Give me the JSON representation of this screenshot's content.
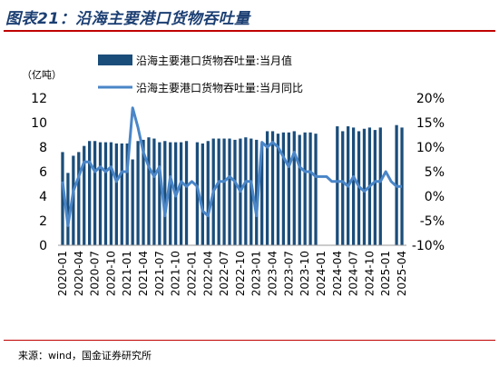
{
  "title": "图表21：沿海主要港口货物吞吐量",
  "source": "来源：wind，国金证券研究所",
  "colors": {
    "bar": "#1b4d7a",
    "line": "#4a86c8",
    "title": "#1c3f73",
    "rule": "#c00000"
  },
  "chart_data": {
    "type": "bar+line",
    "unit_label": "（亿吨）",
    "legend": [
      {
        "name": "沿海主要港口货物吞吐量:当月值",
        "type": "bar"
      },
      {
        "name": "沿海主要港口货物吞吐量:当月同比",
        "type": "line"
      }
    ],
    "y_left": {
      "range": [
        0,
        12
      ],
      "ticks": [
        "0",
        "2",
        "4",
        "6",
        "8",
        "10",
        "12"
      ]
    },
    "y_right": {
      "range": [
        -10,
        20
      ],
      "ticks": [
        "-10%",
        "-5%",
        "0%",
        "5%",
        "10%",
        "15%",
        "20%"
      ]
    },
    "x_ticks": [
      "2020-01",
      "2020-04",
      "2020-07",
      "2020-10",
      "2021-01",
      "2021-04",
      "2021-07",
      "2021-10",
      "2022-01",
      "2022-04",
      "2022-07",
      "2022-10",
      "2023-01",
      "2023-04",
      "2023-07",
      "2023-10",
      "2024-01",
      "2024-04",
      "2024-07",
      "2024-10",
      "2025-01",
      "2025-04"
    ],
    "months": [
      "2020-01",
      "2020-02",
      "2020-03",
      "2020-04",
      "2020-05",
      "2020-06",
      "2020-07",
      "2020-08",
      "2020-09",
      "2020-10",
      "2020-11",
      "2020-12",
      "2021-01",
      "2021-02",
      "2021-03",
      "2021-04",
      "2021-05",
      "2021-06",
      "2021-07",
      "2021-08",
      "2021-09",
      "2021-10",
      "2021-11",
      "2021-12",
      "2022-01",
      "2022-02",
      "2022-03",
      "2022-04",
      "2022-05",
      "2022-06",
      "2022-07",
      "2022-08",
      "2022-09",
      "2022-10",
      "2022-11",
      "2022-12",
      "2023-01",
      "2023-02",
      "2023-03",
      "2023-04",
      "2023-05",
      "2023-06",
      "2023-07",
      "2023-08",
      "2023-09",
      "2023-10",
      "2023-11",
      "2023-12",
      "2024-01",
      "2024-02",
      "2024-03",
      "2024-04",
      "2024-05",
      "2024-06",
      "2024-07",
      "2024-08",
      "2024-09",
      "2024-10",
      "2024-11",
      "2024-12",
      "2025-01",
      "2025-02",
      "2025-03",
      "2025-04"
    ],
    "values": [
      7.6,
      5.9,
      7.3,
      7.6,
      8.1,
      8.5,
      8.5,
      8.4,
      8.4,
      8.4,
      8.3,
      8.3,
      8.3,
      7.0,
      8.5,
      8.6,
      8.8,
      8.7,
      8.4,
      8.5,
      8.4,
      8.4,
      8.4,
      8.5,
      null,
      8.4,
      8.3,
      8.5,
      8.7,
      8.7,
      8.7,
      8.7,
      8.6,
      8.7,
      8.8,
      8.7,
      8.6,
      8.3,
      9.3,
      9.3,
      9.1,
      9.2,
      9.2,
      9.3,
      9.0,
      9.2,
      9.2,
      9.1,
      null,
      null,
      null,
      9.7,
      9.3,
      9.7,
      9.6,
      9.3,
      9.5,
      9.6,
      9.4,
      9.6,
      null,
      null,
      9.8,
      9.6
    ],
    "yoy": [
      3,
      -6,
      1,
      4,
      7,
      7,
      5,
      6,
      5,
      6,
      3,
      5,
      5,
      18,
      14,
      9,
      6,
      4,
      6,
      -4,
      4,
      0,
      3,
      2,
      3,
      2,
      -3,
      -4,
      1,
      3,
      3,
      4,
      3,
      1,
      3,
      3,
      -4,
      11,
      10,
      11,
      10,
      8,
      6,
      9,
      6,
      5,
      5,
      4,
      4,
      4,
      3,
      3,
      3,
      2,
      4,
      2,
      1,
      2,
      3,
      3,
      5,
      3,
      2,
      2
    ]
  }
}
